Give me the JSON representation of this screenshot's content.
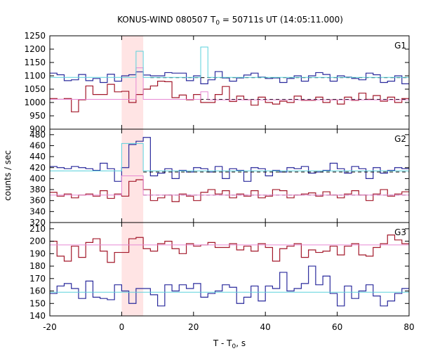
{
  "chart_data": {
    "type": "line",
    "title": "KONUS-WIND 080507 T",
    "title_sub": "0",
    "title_rest": " = 50711s UT (14:05:11.000)",
    "xlabel": "T - T",
    "xlabel_sub": "0",
    "xlabel_rest": ", s",
    "ylabel": "counts / sec",
    "xlim": [
      -20,
      80
    ],
    "x_ticks": [
      -20,
      0,
      20,
      40,
      60,
      80
    ],
    "highlight": [
      0,
      6
    ],
    "colors": {
      "highlight": "#ffe4e4",
      "blue": "#2a2a9c",
      "cyan": "#5ad2dc",
      "red": "#a3182a",
      "pink": "#e689d4",
      "black": "#000000"
    },
    "panels": [
      {
        "name": "G1",
        "ylim": [
          900,
          1250
        ],
        "y_ticks": [
          900,
          950,
          1000,
          1050,
          1100,
          1150,
          1200,
          1250
        ],
        "series": [
          {
            "name": "G1 low-band counts",
            "color": "blue",
            "x0": -20,
            "dx": 2,
            "values": [
              1110,
              1104,
              1082,
              1085,
              1105,
              1082,
              1090,
              1075,
              1106,
              1080,
              1100,
              1104,
              1115,
              1103,
              1100,
              1100,
              1112,
              1110,
              1110,
              1082,
              1100,
              1070,
              1085,
              1116,
              1092,
              1080,
              1092,
              1103,
              1110,
              1095,
              1090,
              1092,
              1075,
              1090,
              1100,
              1080,
              1100,
              1112,
              1105,
              1080,
              1100,
              1095,
              1090,
              1085,
              1110,
              1104,
              1075,
              1080,
              1100,
              1070
            ]
          },
          {
            "name": "G1 high-band counts",
            "color": "red",
            "x0": -20,
            "dx": 2,
            "values": [
              1015,
              1012,
              1015,
              965,
              1010,
              1062,
              1030,
              1030,
              1068,
              1040,
              1042,
              1000,
              1030,
              1050,
              1062,
              1080,
              1078,
              1018,
              1028,
              1010,
              1030,
              1000,
              1000,
              1030,
              1060,
              1004,
              1024,
              1010,
              990,
              1020,
              1000,
              994,
              1005,
              1000,
              1024,
              1008,
              1008,
              1020,
              1000,
              1010,
              994,
              1020,
              1008,
              1035,
              1012,
              1026,
              1005,
              1020,
              1000,
              1015
            ]
          },
          {
            "name": "G1 background fit",
            "kind": "dash",
            "color": "black",
            "x": [
              8,
              80
            ],
            "y": [
              1093,
              1093
            ]
          },
          {
            "name": "G1 background fit (high)",
            "kind": "dash",
            "color": "black",
            "x": [
              6,
              80
            ],
            "y": [
              1012,
              1012
            ]
          },
          {
            "name": "G1 modelled high band",
            "kind": "steps",
            "color": "pink",
            "edges": [
              -20,
              4,
              6,
              20,
              22,
              24,
              80
            ],
            "values": [
              1012,
              1130,
              1012,
              1012,
              1040,
              1010
            ]
          },
          {
            "name": "G1 modelled low band",
            "kind": "steps",
            "color": "cyan",
            "edges": [
              -20,
              4,
              6,
              20,
              22,
              24,
              80
            ],
            "values": [
              1094,
              1192,
              1094,
              1094,
              1208,
              1094
            ]
          }
        ]
      },
      {
        "name": "G2",
        "ylim": [
          320,
          490
        ],
        "y_ticks": [
          320,
          340,
          360,
          380,
          400,
          420,
          440,
          460,
          480
        ],
        "series": [
          {
            "name": "G2 low-band counts",
            "color": "blue",
            "x0": -20,
            "dx": 2,
            "values": [
              422,
              420,
              418,
              422,
              420,
              418,
              415,
              428,
              418,
              395,
              420,
              462,
              468,
              475,
              405,
              410,
              418,
              400,
              415,
              412,
              420,
              418,
              412,
              422,
              400,
              418,
              415,
              395,
              420,
              418,
              405,
              415,
              412,
              420,
              418,
              422,
              410,
              412,
              415,
              428,
              418,
              410,
              422,
              418,
              400,
              420,
              410,
              415,
              420,
              418
            ]
          },
          {
            "name": "G2 high-band counts",
            "color": "red",
            "x0": -20,
            "dx": 2,
            "values": [
              375,
              368,
              372,
              365,
              370,
              372,
              368,
              378,
              364,
              372,
              368,
              395,
              398,
              380,
              360,
              365,
              370,
              358,
              372,
              368,
              360,
              375,
              380,
              372,
              378,
              365,
              372,
              368,
              378,
              365,
              368,
              380,
              378,
              365,
              370,
              372,
              374,
              368,
              376,
              370,
              365,
              372,
              378,
              370,
              360,
              372,
              380,
              368,
              372,
              376
            ]
          },
          {
            "name": "G2 background fit",
            "kind": "dash",
            "color": "black",
            "x": [
              6,
              80
            ],
            "y": [
              412,
              412
            ]
          },
          {
            "name": "G2 background fit (high)",
            "kind": "dash",
            "color": "black",
            "x": [
              6,
              80
            ],
            "y": [
              370,
              370
            ]
          },
          {
            "name": "G2 modelled high band",
            "kind": "steps",
            "color": "pink",
            "edges": [
              -20,
              0,
              6,
              80
            ],
            "values": [
              370,
              405,
              370
            ]
          },
          {
            "name": "G2 modelled low band",
            "kind": "steps",
            "color": "cyan",
            "edges": [
              -20,
              0,
              6,
              80
            ],
            "values": [
              414,
              464,
              414
            ]
          }
        ]
      },
      {
        "name": "G3",
        "ylim": [
          140,
          215
        ],
        "y_ticks": [
          140,
          150,
          160,
          170,
          180,
          190,
          200,
          210
        ],
        "series": [
          {
            "name": "G3 low-band counts",
            "color": "blue",
            "x0": -20,
            "dx": 2,
            "values": [
              158,
              164,
              166,
              162,
              154,
              168,
              155,
              154,
              153,
              165,
              160,
              150,
              162,
              162,
              157,
              148,
              165,
              160,
              165,
              162,
              166,
              155,
              158,
              160,
              165,
              163,
              150,
              155,
              164,
              152,
              164,
              162,
              175,
              160,
              162,
              166,
              180,
              165,
              172,
              158,
              148,
              164,
              154,
              160,
              165,
              156,
              148,
              152,
              158,
              162
            ]
          },
          {
            "name": "G3 high-band counts",
            "color": "red",
            "x0": -20,
            "dx": 2,
            "values": [
              200,
              188,
              184,
              196,
              187,
              199,
              202,
              192,
              183,
              191,
              191,
              202,
              203,
              194,
              192,
              198,
              200,
              194,
              190,
              198,
              196,
              197,
              199,
              195,
              195,
              198,
              193,
              196,
              192,
              198,
              195,
              184,
              194,
              196,
              198,
              187,
              193,
              191,
              192,
              196,
              189,
              196,
              198,
              189,
              188,
              195,
              198,
              205,
              201,
              198
            ]
          },
          {
            "name": "G3 modelled high band",
            "kind": "steps",
            "color": "pink",
            "edges": [
              -20,
              80
            ],
            "values": [
              197
            ]
          },
          {
            "name": "G3 modelled low band",
            "kind": "steps",
            "color": "cyan",
            "edges": [
              -20,
              80
            ],
            "values": [
              159
            ]
          }
        ]
      }
    ]
  }
}
